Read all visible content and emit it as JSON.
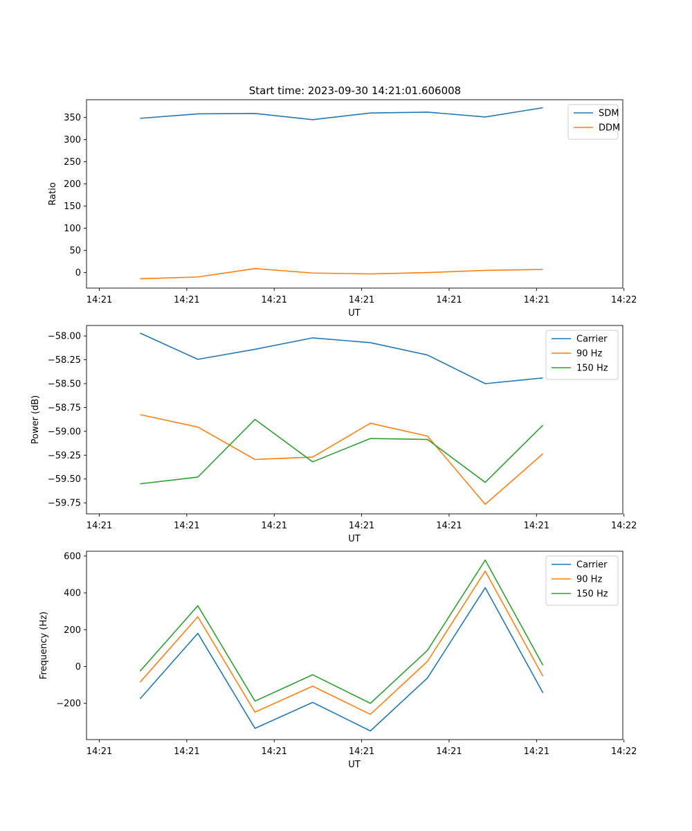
{
  "figure_title": "Start time: 2023-09-30 14:21:01.606008",
  "chart_data": [
    {
      "type": "line",
      "title": "Start time: 2023-09-30 14:21:01.606008",
      "xlabel": "UT",
      "ylabel": "Ratio",
      "xlim": [
        0,
        9.2
      ],
      "ylim": [
        -35,
        390
      ],
      "x_ticks": [
        0.22,
        1.72,
        3.22,
        4.72,
        6.22,
        7.72,
        9.22
      ],
      "x_tick_labels": [
        "14:21",
        "14:21",
        "14:21",
        "14:21",
        "14:21",
        "14:21",
        "14:22"
      ],
      "y_ticks": [
        0,
        50,
        100,
        150,
        200,
        250,
        300,
        350
      ],
      "y_tick_labels": [
        "0",
        "50",
        "100",
        "150",
        "200",
        "250",
        "300",
        "350"
      ],
      "legend_position": "top-right",
      "x": [
        0.92,
        1.91,
        2.89,
        3.88,
        4.87,
        5.85,
        6.84,
        7.83
      ],
      "series": [
        {
          "name": "SDM",
          "color": "#1f77b4",
          "values": [
            348,
            358,
            359,
            345,
            360,
            362,
            351,
            372
          ]
        },
        {
          "name": "DDM",
          "color": "#ff7f0e",
          "values": [
            -14,
            -10,
            9,
            -1,
            -3,
            0,
            5,
            7
          ]
        }
      ]
    },
    {
      "type": "line",
      "xlabel": "UT",
      "ylabel": "Power (dB)",
      "xlim": [
        0,
        9.2
      ],
      "ylim": [
        -59.865,
        -57.89
      ],
      "x_ticks": [
        0.22,
        1.72,
        3.22,
        4.72,
        6.22,
        7.72,
        9.22
      ],
      "x_tick_labels": [
        "14:21",
        "14:21",
        "14:21",
        "14:21",
        "14:21",
        "14:21",
        "14:22"
      ],
      "y_ticks": [
        -59.75,
        -59.5,
        -59.25,
        -59.0,
        -58.75,
        -58.5,
        -58.25,
        -58.0
      ],
      "y_tick_labels": [
        "−59.75",
        "−59.50",
        "−59.25",
        "−59.00",
        "−58.75",
        "−58.50",
        "−58.25",
        "−58.00"
      ],
      "legend_position": "top-right",
      "x": [
        0.92,
        1.91,
        2.89,
        3.88,
        4.87,
        5.85,
        6.84,
        7.83
      ],
      "series": [
        {
          "name": "Carrier",
          "color": "#1f77b4",
          "values": [
            -57.97,
            -58.245,
            -58.14,
            -58.02,
            -58.07,
            -58.2,
            -58.5,
            -58.44
          ]
        },
        {
          "name": "90 Hz",
          "color": "#ff7f0e",
          "values": [
            -58.825,
            -58.955,
            -59.295,
            -59.27,
            -58.915,
            -59.05,
            -59.765,
            -59.235
          ]
        },
        {
          "name": "150 Hz",
          "color": "#2ca02c",
          "values": [
            -59.55,
            -59.48,
            -58.875,
            -59.32,
            -59.075,
            -59.085,
            -59.535,
            -58.935
          ]
        }
      ]
    },
    {
      "type": "line",
      "xlabel": "UT",
      "ylabel": "Frequency (Hz)",
      "xlim": [
        0,
        9.2
      ],
      "ylim": [
        -397,
        626
      ],
      "x_ticks": [
        0.22,
        1.72,
        3.22,
        4.72,
        6.22,
        7.72,
        9.22
      ],
      "x_tick_labels": [
        "14:21",
        "14:21",
        "14:21",
        "14:21",
        "14:21",
        "14:21",
        "14:22"
      ],
      "y_ticks": [
        -200,
        0,
        200,
        400,
        600
      ],
      "y_tick_labels": [
        "−200",
        "0",
        "200",
        "400",
        "600"
      ],
      "legend_position": "top-right",
      "x": [
        0.92,
        1.91,
        2.89,
        3.88,
        4.87,
        5.85,
        6.84,
        7.83
      ],
      "series": [
        {
          "name": "Carrier",
          "color": "#1f77b4",
          "values": [
            -175,
            180,
            -336,
            -195,
            -350,
            -62,
            428,
            -143
          ]
        },
        {
          "name": "90 Hz",
          "color": "#ff7f0e",
          "values": [
            -85,
            270,
            -248,
            -107,
            -260,
            28,
            518,
            -53
          ]
        },
        {
          "name": "150 Hz",
          "color": "#2ca02c",
          "values": [
            -25,
            330,
            -188,
            -45,
            -200,
            88,
            578,
            7
          ]
        }
      ]
    }
  ]
}
